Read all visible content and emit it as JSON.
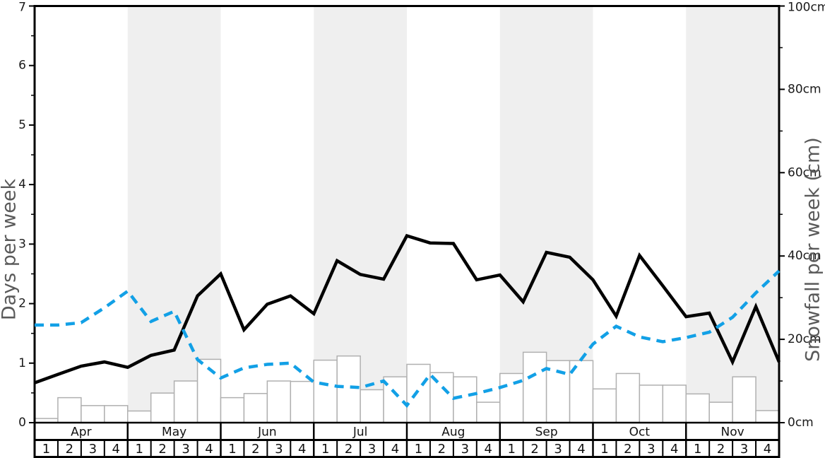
{
  "chart_data": {
    "type": "line+bar",
    "title": "",
    "x_axis": {
      "months": [
        "Apr",
        "May",
        "Jun",
        "Jul",
        "Aug",
        "Sep",
        "Oct",
        "Nov"
      ],
      "weeks": [
        "1",
        "2",
        "3",
        "4"
      ],
      "shaded_months": [
        "May",
        "Jul",
        "Sep",
        "Nov"
      ]
    },
    "y_left": {
      "label": "Days per week",
      "min": 0,
      "max": 7,
      "tick_step": 1,
      "minor_tick_step": 0.5,
      "tick_labels": [
        "0",
        "1",
        "2",
        "3",
        "4",
        "5",
        "6",
        "7"
      ]
    },
    "y_right": {
      "label": "Snowfall per week (cm)",
      "min": 0,
      "max": 100,
      "tick_step": 20,
      "minor_tick_step": 10,
      "tick_labels": [
        "0cm",
        "20cm",
        "40cm",
        "60cm",
        "80cm",
        "100cm"
      ]
    },
    "series": [
      {
        "name": "days-per-week-solid-line",
        "type": "line",
        "style": "solid",
        "axis": "left",
        "color": "#000000",
        "values": [
          0.67,
          0.81,
          0.95,
          1.02,
          0.93,
          1.13,
          1.22,
          2.13,
          2.5,
          1.56,
          1.99,
          2.13,
          1.83,
          2.72,
          2.49,
          2.41,
          3.14,
          3.02,
          3.01,
          2.4,
          2.48,
          2.03,
          2.86,
          2.78,
          2.4,
          1.79,
          2.81,
          2.3,
          1.78,
          1.84,
          1.02,
          1.95,
          1.02
        ]
      },
      {
        "name": "days-per-week-dashed-line",
        "type": "line",
        "style": "dashed",
        "axis": "left",
        "color": "#12a0e6",
        "values": [
          1.64,
          1.64,
          1.68,
          1.93,
          2.21,
          1.7,
          1.87,
          1.06,
          0.75,
          0.92,
          0.98,
          1.0,
          0.68,
          0.61,
          0.59,
          0.7,
          0.29,
          0.81,
          0.41,
          0.49,
          0.59,
          0.71,
          0.91,
          0.81,
          1.32,
          1.62,
          1.44,
          1.36,
          1.43,
          1.52,
          1.77,
          2.18,
          2.55
        ]
      },
      {
        "name": "snowfall-per-week-bars",
        "type": "bar",
        "axis": "right",
        "unit": "cm",
        "fill": "#ffffff",
        "border": "#b0b0b0",
        "values": [
          1.0,
          6.0,
          4.1,
          4.1,
          2.8,
          7.1,
          10.0,
          15.2,
          6.0,
          7.0,
          10.0,
          9.9,
          15.0,
          16.0,
          7.9,
          11.0,
          14.0,
          12.0,
          11.0,
          4.9,
          11.8,
          16.9,
          14.9,
          14.9,
          8.1,
          11.8,
          9.0,
          9.0,
          6.9,
          4.9,
          11.0,
          2.9
        ]
      }
    ],
    "layout_colors": {
      "month_band": "#efefef",
      "frame": "#000000",
      "tick_label": "#1a1a1a",
      "axis_title": "#5a5a5a",
      "table_text": "#111111"
    },
    "legend": "none",
    "grid": "off"
  }
}
